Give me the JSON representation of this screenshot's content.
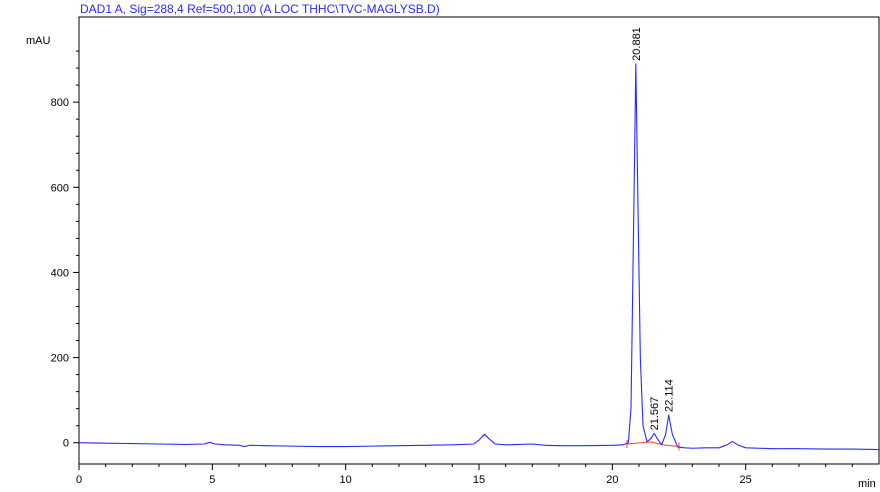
{
  "chart_data": {
    "type": "line",
    "title": "DAD1 A, Sig=288,4 Ref=500,100 (A LOC THHC\\TVC-MAGLYSB.D)",
    "ylabel": "mAU",
    "xlabel": "min",
    "xlim": [
      0,
      30
    ],
    "ylim": [
      -50,
      1000
    ],
    "x_ticks": [
      "0",
      "5",
      "10",
      "15",
      "20",
      "25"
    ],
    "y_ticks": [
      "0",
      "200",
      "400",
      "600",
      "800"
    ],
    "series_color": "#2a2aff",
    "baseline_color": "#ff3b3b",
    "peak_labels": [
      "20.881",
      "21.567",
      "22.114"
    ],
    "peaks": [
      {
        "label": "20.881",
        "x": 20.881,
        "y": 890
      },
      {
        "label": "21.567",
        "x": 21.567,
        "y": 22
      },
      {
        "label": "22.114",
        "x": 22.114,
        "y": 65
      }
    ],
    "series": [
      {
        "x": [
          0,
          1,
          2,
          3,
          4,
          4.7,
          4.9,
          5.1,
          5.5,
          6,
          6.2,
          6.4,
          7,
          8,
          9,
          10,
          11,
          12,
          13,
          14,
          14.8,
          15.0,
          15.2,
          15.4,
          15.6,
          16,
          16.5,
          17,
          17.5,
          18,
          19,
          20,
          20.4,
          20.6,
          20.7,
          20.8,
          20.881,
          20.95,
          21.05,
          21.15,
          21.3,
          21.45,
          21.567,
          21.7,
          21.85,
          22.0,
          22.114,
          22.25,
          22.45,
          22.7,
          23,
          23.5,
          24,
          24.3,
          24.5,
          24.7,
          25,
          26,
          27,
          28,
          29,
          30
        ],
        "y": [
          0,
          -1,
          -2,
          -3,
          -4,
          -3,
          1,
          -3,
          -5,
          -6,
          -9,
          -6,
          -7,
          -8,
          -9,
          -9,
          -8,
          -7,
          -6,
          -5,
          -3,
          6,
          20,
          8,
          -3,
          -5,
          -4,
          -3,
          -6,
          -7,
          -7,
          -6,
          -5,
          0,
          80,
          520,
          890,
          600,
          200,
          40,
          2,
          10,
          22,
          8,
          -5,
          20,
          65,
          20,
          -10,
          -12,
          -13,
          -12,
          -12,
          -5,
          3,
          -5,
          -12,
          -14,
          -14,
          -15,
          -15,
          -16
        ]
      }
    ]
  }
}
